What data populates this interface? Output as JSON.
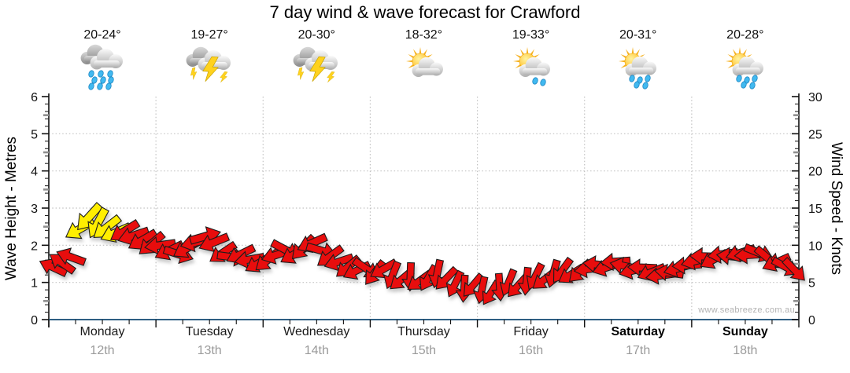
{
  "title": "7 day wind & wave forecast for Crawford",
  "watermark": "www.seabreeze.com.au",
  "left_axis": {
    "label": "Wave Height - Metres",
    "min": 0,
    "max": 6,
    "major_step": 1,
    "minor_step": 0.2
  },
  "right_axis": {
    "label": "Wind Speed - Knots",
    "min": 0,
    "max": 30,
    "major_step": 5,
    "minor_step": 1
  },
  "days": [
    {
      "name": "Monday",
      "date": "12th",
      "temp": "20-24°",
      "icon": "rain",
      "bold": false
    },
    {
      "name": "Tuesday",
      "date": "13th",
      "temp": "19-27°",
      "icon": "storm",
      "bold": false
    },
    {
      "name": "Wednesday",
      "date": "14th",
      "temp": "20-30°",
      "icon": "storm",
      "bold": false
    },
    {
      "name": "Thursday",
      "date": "15th",
      "temp": "18-32°",
      "icon": "sun-cloud",
      "bold": false
    },
    {
      "name": "Friday",
      "date": "16th",
      "temp": "19-33°",
      "icon": "sun-cloud-drizzle",
      "bold": false
    },
    {
      "name": "Saturday",
      "date": "17th",
      "temp": "20-31°",
      "icon": "sun-cloud-showers",
      "bold": true
    },
    {
      "name": "Sunday",
      "date": "18th",
      "temp": "20-28°",
      "icon": "sun-cloud-showers",
      "bold": true
    }
  ],
  "colors": {
    "arrow_red": "#e80b0b",
    "arrow_yellow": "#ffee00",
    "arrow_outline": "#1c1c1c",
    "x_axis": "#2e5f83",
    "y_axis": "#111111",
    "grid": "#c2c2c2",
    "tick_minor_grey": "#8f8f8f",
    "date_text": "#9a9a9a",
    "watermark_text": "#b3b3b3"
  },
  "chart_data": {
    "type": "wind-arrows",
    "title": "7 day wind & wave forecast for Crawford",
    "ylabel_left": "Wave Height - Metres",
    "ylabel_right": "Wind Speed - Knots",
    "ylim_left": [
      0,
      6
    ],
    "ylim_right": [
      0,
      30
    ],
    "x_categories": [
      "Monday 12th",
      "Tuesday 13th",
      "Wednesday 14th",
      "Thursday 15th",
      "Friday 16th",
      "Saturday 17th",
      "Sunday 18th"
    ],
    "grid": true,
    "step_hours": 2,
    "per_day_arrow_count": 12,
    "speed_unit": "knots",
    "arrow_format": [
      "speed_knots",
      "direction_deg_screen",
      "color r=red y=yellow"
    ],
    "arrows": [
      [
        7.0,
        205,
        "r"
      ],
      [
        7.6,
        215,
        "r"
      ],
      [
        8.4,
        200,
        "r"
      ],
      [
        12.2,
        150,
        "y"
      ],
      [
        13.8,
        132,
        "y"
      ],
      [
        13.0,
        118,
        "y"
      ],
      [
        12.4,
        142,
        "y"
      ],
      [
        11.7,
        156,
        "y"
      ],
      [
        11.9,
        148,
        "r"
      ],
      [
        11.3,
        162,
        "r"
      ],
      [
        10.7,
        150,
        "r"
      ],
      [
        10.2,
        140,
        "r"
      ],
      [
        10.0,
        172,
        "r"
      ],
      [
        9.3,
        154,
        "r"
      ],
      [
        8.8,
        18,
        "r"
      ],
      [
        9.6,
        150,
        "r"
      ],
      [
        10.4,
        166,
        "r"
      ],
      [
        11.2,
        344,
        "r"
      ],
      [
        10.4,
        158,
        "r"
      ],
      [
        9.0,
        146,
        "r"
      ],
      [
        8.4,
        8,
        "r"
      ],
      [
        8.8,
        154,
        "r"
      ],
      [
        8.1,
        170,
        "r"
      ],
      [
        7.6,
        150,
        "r"
      ],
      [
        8.0,
        140,
        "r"
      ],
      [
        8.7,
        162,
        "r"
      ],
      [
        9.4,
        28,
        "r"
      ],
      [
        8.8,
        150,
        "r"
      ],
      [
        9.7,
        134,
        "r"
      ],
      [
        10.3,
        156,
        "r"
      ],
      [
        9.3,
        16,
        "r"
      ],
      [
        8.5,
        144,
        "r"
      ],
      [
        7.8,
        162,
        "r"
      ],
      [
        7.1,
        140,
        "r"
      ],
      [
        6.6,
        154,
        "r"
      ],
      [
        6.9,
        34,
        "r"
      ],
      [
        6.3,
        128,
        "r"
      ],
      [
        6.8,
        150,
        "r"
      ],
      [
        6.0,
        112,
        "r"
      ],
      [
        5.4,
        140,
        "r"
      ],
      [
        5.8,
        92,
        "r"
      ],
      [
        5.2,
        144,
        "r"
      ],
      [
        5.6,
        120,
        "r"
      ],
      [
        6.2,
        102,
        "r"
      ],
      [
        5.5,
        134,
        "r"
      ],
      [
        4.8,
        116,
        "r"
      ],
      [
        4.2,
        94,
        "r"
      ],
      [
        4.6,
        130,
        "r"
      ],
      [
        4.0,
        102,
        "r"
      ],
      [
        3.6,
        122,
        "r"
      ],
      [
        4.4,
        86,
        "r"
      ],
      [
        5.0,
        112,
        "r"
      ],
      [
        4.5,
        132,
        "r"
      ],
      [
        5.2,
        96,
        "r"
      ],
      [
        5.8,
        116,
        "r"
      ],
      [
        5.4,
        142,
        "r"
      ],
      [
        6.2,
        106,
        "r"
      ],
      [
        6.6,
        126,
        "r"
      ],
      [
        6.1,
        148,
        "r"
      ],
      [
        6.5,
        136,
        "r"
      ],
      [
        6.8,
        172,
        "r"
      ],
      [
        7.4,
        186,
        "r"
      ],
      [
        7.0,
        162,
        "r"
      ],
      [
        7.8,
        176,
        "r"
      ],
      [
        7.2,
        192,
        "r"
      ],
      [
        6.6,
        166,
        "r"
      ],
      [
        7.0,
        182,
        "r"
      ],
      [
        6.4,
        158,
        "r"
      ],
      [
        5.9,
        172,
        "r"
      ],
      [
        6.3,
        188,
        "r"
      ],
      [
        6.9,
        164,
        "r"
      ],
      [
        7.3,
        176,
        "r"
      ],
      [
        7.9,
        166,
        "r"
      ],
      [
        8.5,
        182,
        "r"
      ],
      [
        8.1,
        152,
        "r"
      ],
      [
        8.8,
        172,
        "r"
      ],
      [
        8.5,
        186,
        "r"
      ],
      [
        9.0,
        162,
        "r"
      ],
      [
        8.7,
        176,
        "r"
      ],
      [
        9.0,
        22,
        "r"
      ],
      [
        8.3,
        40,
        "r"
      ],
      [
        7.7,
        156,
        "r"
      ],
      [
        7.1,
        28,
        "r"
      ],
      [
        6.7,
        46,
        "r"
      ]
    ]
  }
}
